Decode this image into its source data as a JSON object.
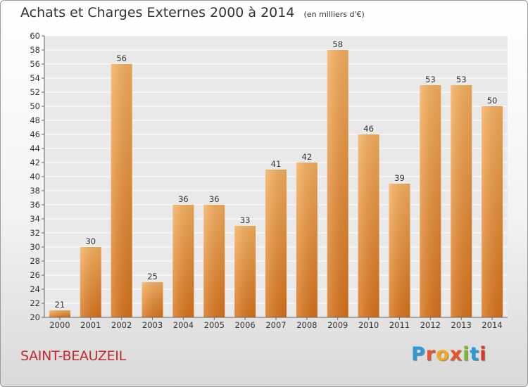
{
  "header": {
    "title": "Achats et Charges Externes 2000 à 2014",
    "unit": "(en milliers d'€)"
  },
  "footer": {
    "commune": "SAINT-BEAUZEIL",
    "logo_text": "Proxiti",
    "logo_colors": [
      "#2a9bd8",
      "#e8542a",
      "#f2a91d",
      "#e8542a",
      "#7ab929",
      "#2a9bd8",
      "#d9382e"
    ]
  },
  "colors": {
    "bar": "#f08c2a",
    "bar_light": "#f7b05e",
    "bar_dark": "#d9731a",
    "grid": "#ffffff",
    "title": "#333333",
    "commune": "#c2282e"
  },
  "chart_data": {
    "type": "bar",
    "title": "Achats et Charges Externes 2000 à 2014",
    "subtitle": "(en milliers d'€)",
    "xlabel": "",
    "ylabel": "",
    "categories": [
      "2000",
      "2001",
      "2002",
      "2003",
      "2004",
      "2005",
      "2006",
      "2007",
      "2008",
      "2009",
      "2010",
      "2011",
      "2012",
      "2013",
      "2014"
    ],
    "values": [
      21,
      30,
      56,
      25,
      36,
      36,
      33,
      41,
      42,
      58,
      46,
      39,
      53,
      53,
      50
    ],
    "ylim": [
      20,
      60
    ],
    "ytick_step": 2,
    "grid": true,
    "legend": "none"
  }
}
